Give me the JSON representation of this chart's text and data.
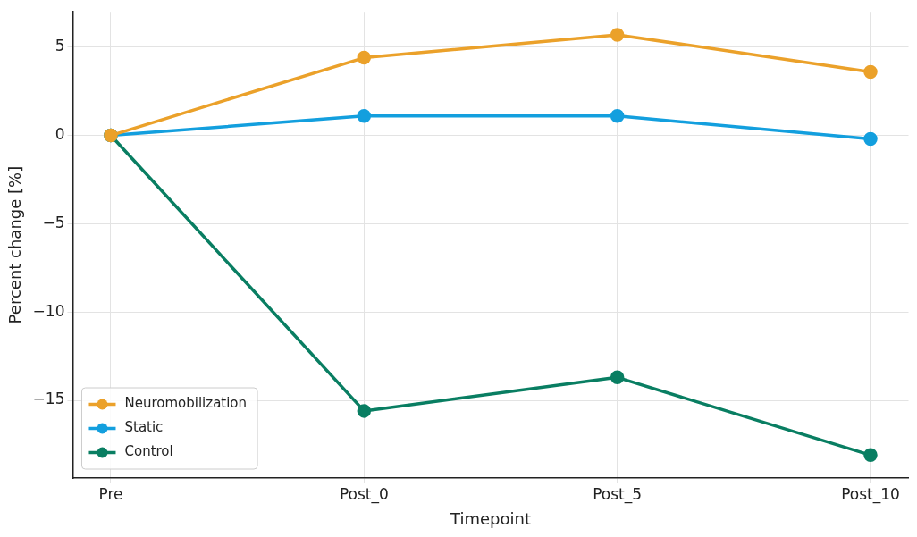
{
  "chart_data": {
    "type": "line",
    "xlabel": "Timepoint",
    "ylabel": "Percent change [%]",
    "categories": [
      "Pre",
      "Post_0",
      "Post_5",
      "Post_10"
    ],
    "series": [
      {
        "name": "Neuromobilization",
        "color": "#eba12a",
        "values": [
          0,
          4.4,
          5.7,
          3.6
        ]
      },
      {
        "name": "Static",
        "color": "#139fde",
        "values": [
          0,
          1.1,
          1.1,
          -0.2
        ]
      },
      {
        "name": "Control",
        "color": "#097e62",
        "values": [
          0,
          -15.6,
          -13.7,
          -18.1
        ]
      }
    ],
    "ylim": [
      -19.4,
      7
    ],
    "yticks": [
      -15,
      -10,
      -5,
      0,
      5
    ],
    "grid": true,
    "legend": "bottom left",
    "marker": "circle",
    "line_style": "solid"
  }
}
